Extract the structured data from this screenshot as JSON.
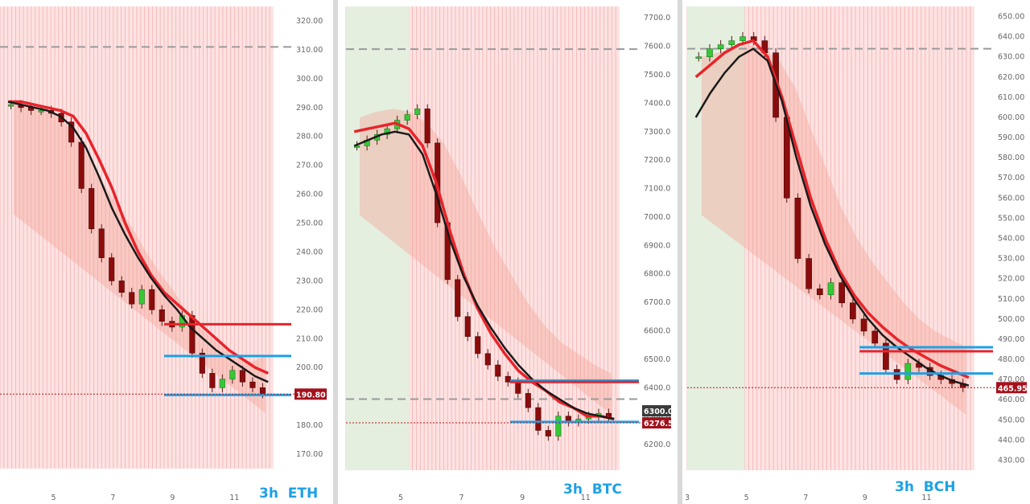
{
  "chart_data": [
    {
      "type": "candlestick",
      "caption": "3h  ETH",
      "ylim": [
        165,
        325
      ],
      "yticks": [
        "170.00",
        "180.00",
        "190.00",
        "200.00",
        "210.00",
        "220.00",
        "230.00",
        "240.00",
        "250.00",
        "260.00",
        "270.00",
        "280.00",
        "290.00",
        "300.00",
        "310.00",
        "320.00"
      ],
      "xticks": [
        "5",
        "7",
        "9",
        "11"
      ],
      "x_index_of_ticks": [
        5,
        7,
        9,
        11
      ],
      "xlim": [
        3.2,
        12.4
      ],
      "price_tag": "190.80",
      "price": 190.8,
      "dashed_level": 311,
      "cloud_top": [
        293,
        292,
        290,
        288,
        284,
        278,
        270,
        262,
        255,
        248,
        240,
        233,
        227,
        220,
        214,
        210,
        206,
        203,
        202,
        204
      ],
      "close": [
        291,
        290,
        289,
        289,
        288,
        285,
        278,
        262,
        248,
        238,
        230,
        226,
        222,
        227,
        220,
        216,
        214,
        218,
        205,
        198,
        193,
        196,
        199,
        195,
        193,
        191
      ],
      "ma_red": [
        292,
        292,
        291,
        290,
        289,
        287,
        281,
        272,
        262,
        250,
        240,
        232,
        226,
        222,
        218,
        214,
        210,
        206,
        203,
        200,
        198
      ],
      "ma_black": [
        292,
        291,
        290,
        289,
        287,
        283,
        276,
        266,
        255,
        246,
        238,
        231,
        225,
        220,
        214,
        210,
        206,
        203,
        200,
        197,
        195
      ],
      "h_lines": [
        {
          "y": 204,
          "color": "#1da1e6"
        },
        {
          "y": 190.5,
          "color": "#1da1e6"
        },
        {
          "y": 215,
          "color": "#e8242b"
        }
      ]
    },
    {
      "type": "candlestick",
      "caption": "3h  BTC",
      "ylim": [
        6110,
        7740
      ],
      "yticks": [
        "6200.0",
        "6300.0",
        "6400.0",
        "6500.0",
        "6600.0",
        "6700.0",
        "6800.0",
        "6900.0",
        "7000.0",
        "7100.0",
        "7200.0",
        "7300.0",
        "7400.0",
        "7500.0",
        "7600.0",
        "7700.0"
      ],
      "xticks": [
        "5",
        "7",
        "9",
        "11"
      ],
      "x_index_of_ticks": [
        5,
        7,
        9,
        11
      ],
      "xlim": [
        3.2,
        12.2
      ],
      "price_tag": "6276.5",
      "price": 6276.5,
      "level_tag": "6300.0",
      "dashed_level": 7590,
      "dashed_level_2": 6360,
      "cloud_top": [
        7350,
        7370,
        7380,
        7370,
        7330,
        7260,
        7150,
        7020,
        6900,
        6800,
        6700,
        6620,
        6560,
        6520,
        6480,
        6450
      ],
      "close": [
        7250,
        7270,
        7290,
        7310,
        7340,
        7360,
        7380,
        7260,
        6980,
        6780,
        6650,
        6580,
        6520,
        6480,
        6440,
        6420,
        6380,
        6330,
        6250,
        6230,
        6300,
        6280,
        6290,
        6300,
        6310,
        6295
      ],
      "ma_red": [
        7300,
        7310,
        7320,
        7330,
        7310,
        7250,
        7120,
        6950,
        6800,
        6680,
        6590,
        6520,
        6460,
        6420,
        6390,
        6350,
        6330,
        6300,
        6300,
        6290
      ],
      "ma_black": [
        7250,
        7270,
        7290,
        7300,
        7290,
        7220,
        7080,
        6920,
        6790,
        6690,
        6610,
        6540,
        6480,
        6430,
        6390,
        6360,
        6330,
        6310,
        6300,
        6290
      ],
      "h_lines": [
        {
          "y": 6425,
          "color": "#1da1e6"
        },
        {
          "y": 6280,
          "color": "#1da1e6"
        },
        {
          "y": 6420,
          "color": "#e8242b"
        }
      ]
    },
    {
      "type": "candlestick",
      "caption": "3h  BCH",
      "ylim": [
        425,
        655
      ],
      "yticks": [
        "430.00",
        "440.00",
        "450.00",
        "460.00",
        "470.00",
        "480.00",
        "490.00",
        "500.00",
        "510.00",
        "520.00",
        "530.00",
        "540.00",
        "550.00",
        "560.00",
        "570.00",
        "580.00",
        "590.00",
        "600.00",
        "610.00",
        "620.00",
        "630.00",
        "640.00",
        "650.00"
      ],
      "xticks": [
        "3",
        "5",
        "7",
        "9",
        "11"
      ],
      "x_index_of_ticks": [
        3,
        5,
        7,
        9,
        11
      ],
      "xlim": [
        3.0,
        12.7
      ],
      "price_tag": "465.95",
      "price": 465.95,
      "dashed_level": 634,
      "cloud_top": [
        630,
        632,
        634,
        636,
        634,
        628,
        615,
        595,
        575,
        555,
        540,
        528,
        518,
        508,
        500,
        494,
        490,
        486
      ],
      "close": [
        630,
        634,
        636,
        638,
        640,
        638,
        632,
        600,
        560,
        530,
        515,
        512,
        518,
        508,
        500,
        494,
        488,
        475,
        470,
        478,
        476,
        472,
        470,
        468,
        466
      ],
      "ma_red": [
        620,
        626,
        632,
        636,
        638,
        630,
        610,
        585,
        560,
        540,
        524,
        512,
        503,
        496,
        490,
        485,
        481,
        477,
        474,
        471
      ],
      "ma_black": [
        600,
        612,
        622,
        630,
        634,
        628,
        608,
        580,
        556,
        537,
        522,
        510,
        500,
        492,
        486,
        481,
        476,
        472,
        469,
        467
      ],
      "h_lines": [
        {
          "y": 486,
          "color": "#1da1e6"
        },
        {
          "y": 473,
          "color": "#1da1e6"
        },
        {
          "y": 484,
          "color": "#e8242b"
        }
      ]
    }
  ]
}
